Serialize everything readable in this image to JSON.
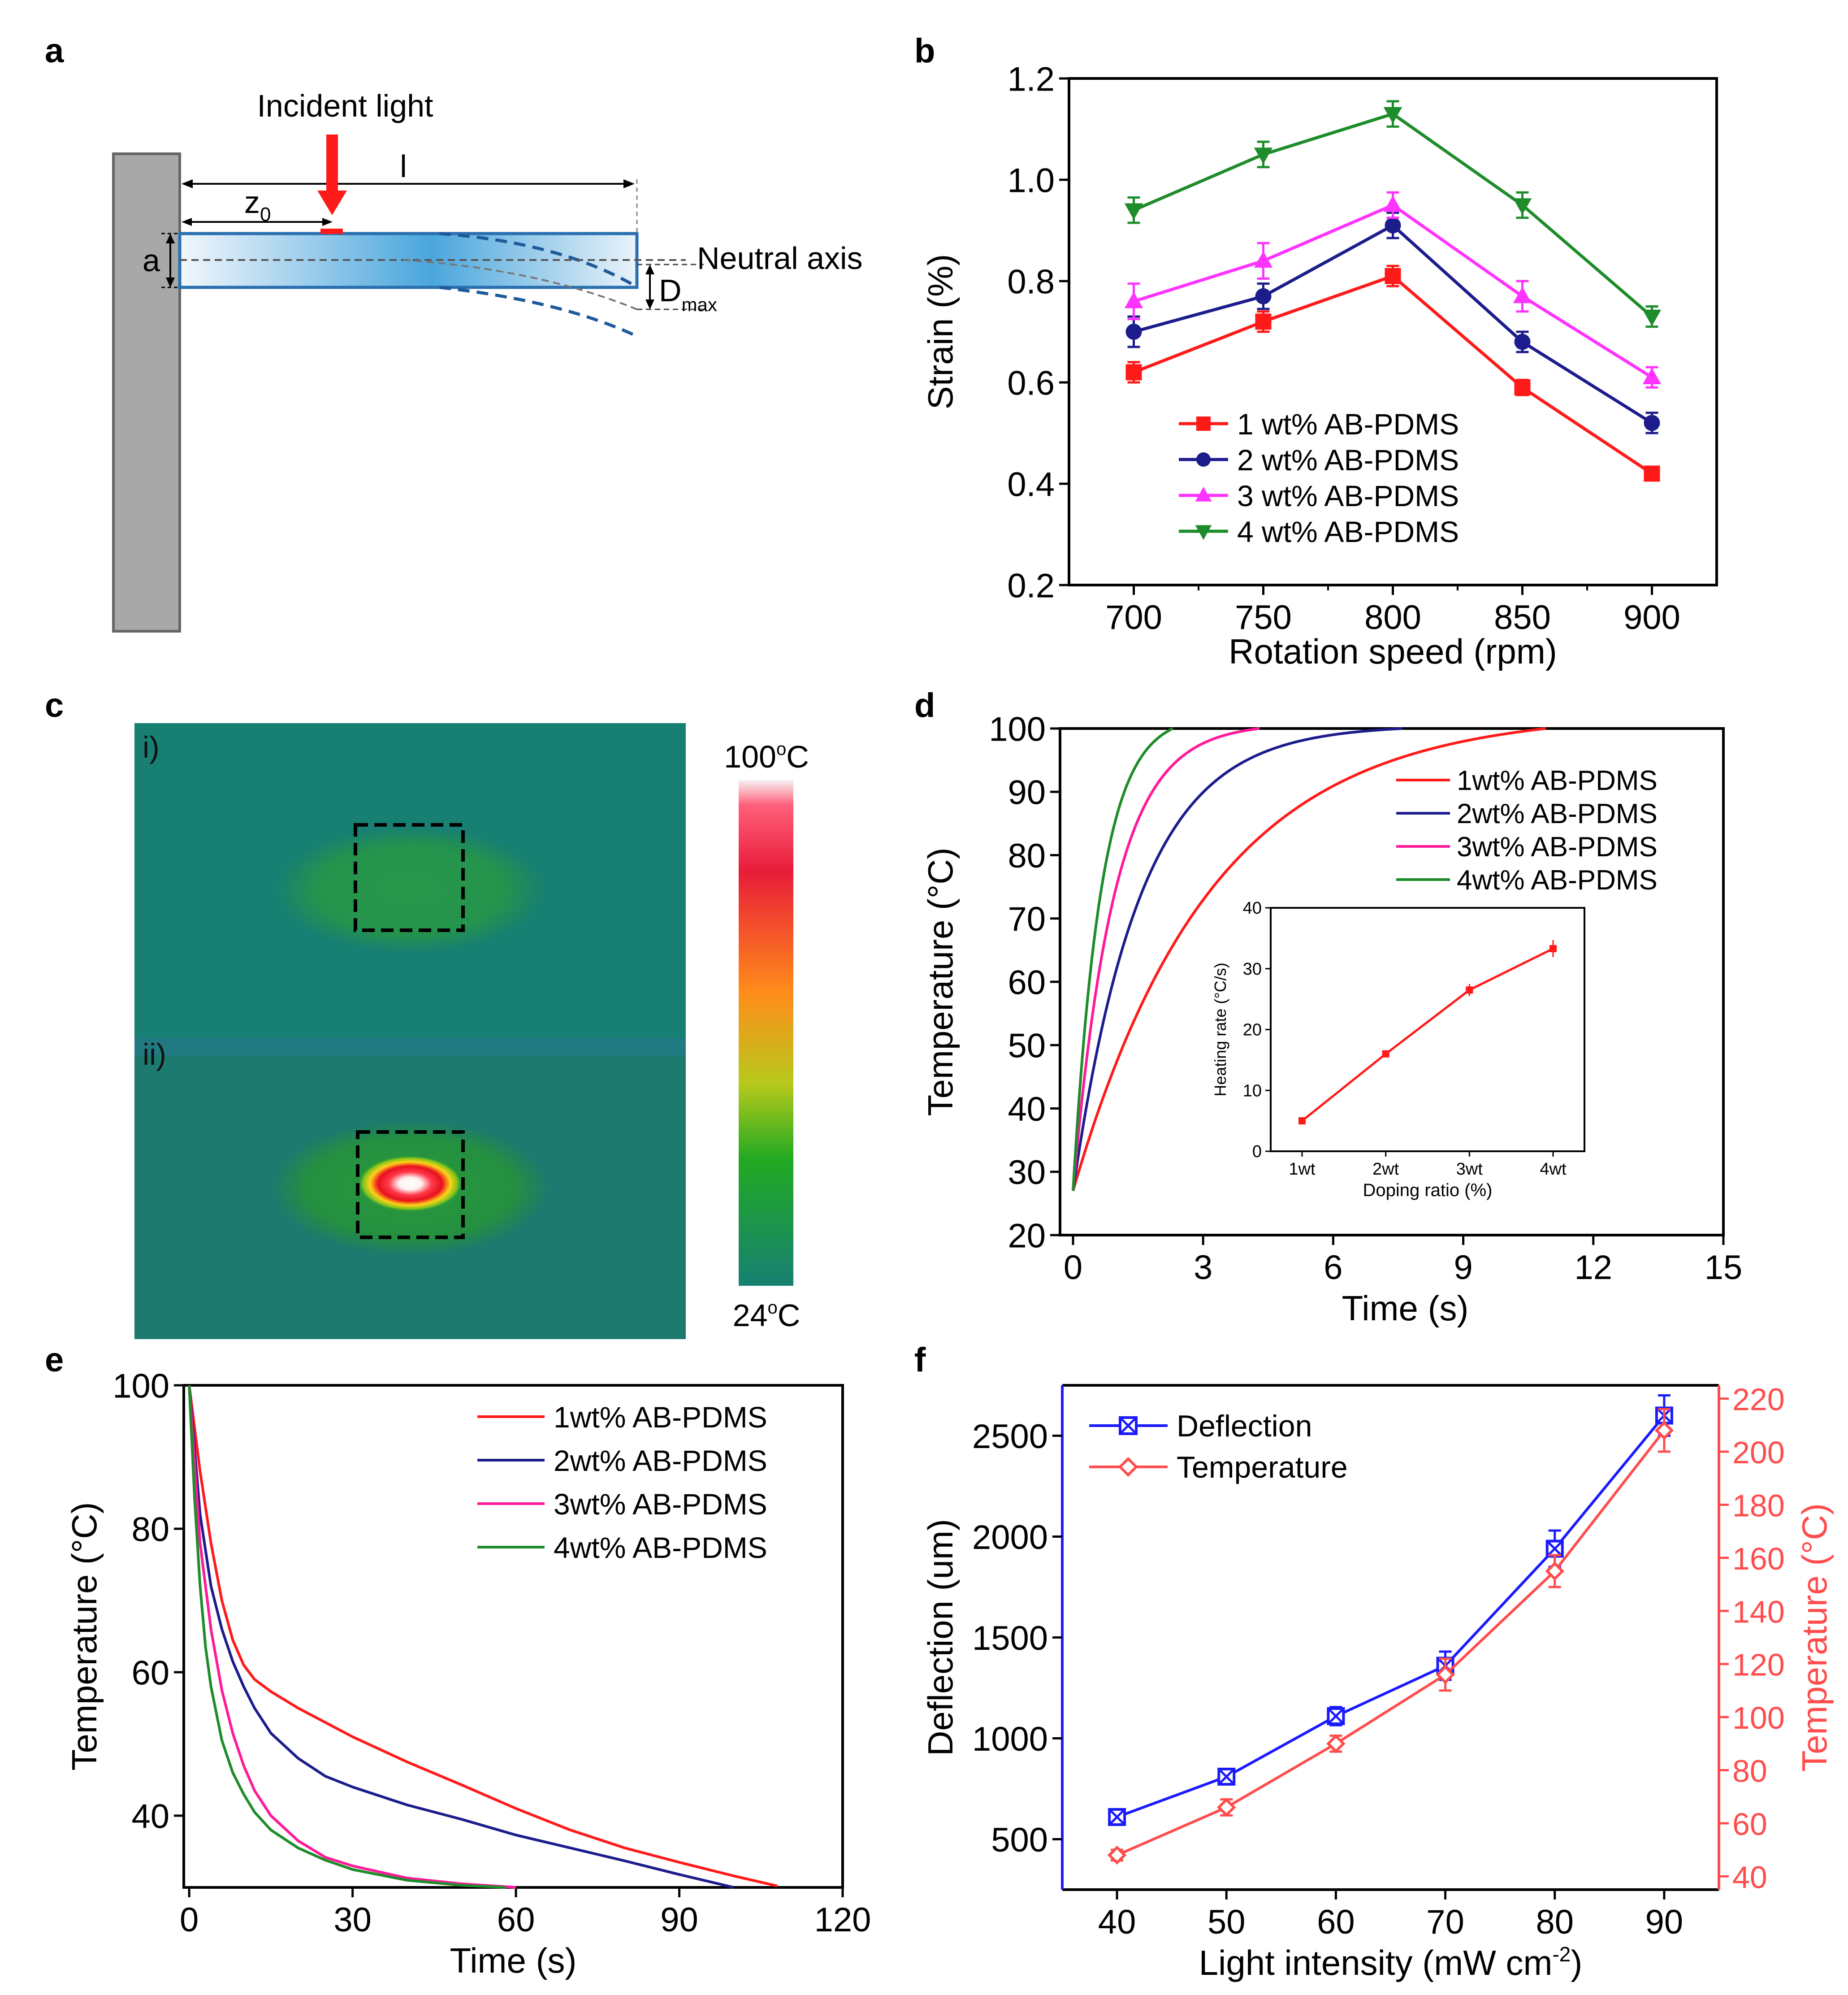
{
  "panel_labels": {
    "a": "a",
    "b": "b",
    "c": "c",
    "d": "d",
    "e": "e",
    "f": "f"
  },
  "colors": {
    "red": "#ff1a1a",
    "navy": "#1c1c8c",
    "magenta": "#ff33cc",
    "green": "#1e8c2a",
    "pink": "#ff3399",
    "blue": "#1a1aff",
    "temp_red": "#ff4d4d",
    "thermal_bg": "#178072",
    "thermal_bg2": "#1d7a6e"
  },
  "panel_a": {
    "incident_light": "Incident light",
    "length_label": "l",
    "z0_label": "z",
    "z0_sub": "0",
    "thickness_label": "a",
    "neutral_axis": "Neutral axis",
    "dmax_label": "D",
    "dmax_sub": "max"
  },
  "panel_c": {
    "sub_i": "i)",
    "sub_ii": "ii)",
    "scale_max": "100",
    "scale_max_sup": "o",
    "scale_max_unit": "C",
    "scale_min": "24",
    "scale_min_sup": "o",
    "scale_min_unit": "C"
  },
  "chart_data": [
    {
      "id": "b",
      "type": "line",
      "xlabel": "Rotation speed (rpm)",
      "ylabel": "Strain (%)",
      "xlim": [
        675,
        925
      ],
      "ylim": [
        0.2,
        1.2
      ],
      "xticks": [
        700,
        750,
        800,
        850,
        900
      ],
      "yticks": [
        0.2,
        0.4,
        0.6,
        0.8,
        1.0,
        1.2
      ],
      "ytick_labels": [
        "0.2",
        "0.4",
        "0.6",
        "0.8",
        "1.0",
        "1.2"
      ],
      "x": [
        700,
        750,
        800,
        850,
        900
      ],
      "legend_position": "bottom-left",
      "series": [
        {
          "name": "1 wt% AB-PDMS",
          "color": "#ff1a1a",
          "marker": "square",
          "values": [
            0.62,
            0.72,
            0.81,
            0.59,
            0.42
          ],
          "err": [
            0.02,
            0.02,
            0.02,
            0.015,
            0.01
          ]
        },
        {
          "name": "2 wt% AB-PDMS",
          "color": "#1c1c8c",
          "marker": "circle",
          "values": [
            0.7,
            0.77,
            0.91,
            0.68,
            0.52
          ],
          "err": [
            0.03,
            0.025,
            0.025,
            0.02,
            0.02
          ]
        },
        {
          "name": "3 wt% AB-PDMS",
          "color": "#ff33ff",
          "marker": "triangle-up",
          "values": [
            0.76,
            0.84,
            0.95,
            0.77,
            0.61
          ],
          "err": [
            0.035,
            0.035,
            0.025,
            0.03,
            0.02
          ]
        },
        {
          "name": "4 wt% AB-PDMS",
          "color": "#1e8c2a",
          "marker": "triangle-down",
          "values": [
            0.94,
            1.05,
            1.13,
            0.95,
            0.73
          ],
          "err": [
            0.025,
            0.025,
            0.025,
            0.025,
            0.02
          ]
        }
      ]
    },
    {
      "id": "d",
      "type": "line",
      "xlabel": "Time (s)",
      "ylabel": "Temperature (°C)",
      "xlim": [
        -0.3,
        15
      ],
      "ylim": [
        20,
        100
      ],
      "xticks": [
        0,
        3,
        6,
        9,
        12,
        15
      ],
      "yticks": [
        20,
        30,
        40,
        50,
        60,
        70,
        80,
        90,
        100
      ],
      "legend_position": "top-right",
      "series": [
        {
          "name": "1wt% AB-PDMS",
          "color": "#ff1a1a",
          "T0": 27,
          "Tmax": 100,
          "tau": 3.2,
          "t_end": 10.9
        },
        {
          "name": "2wt% AB-PDMS",
          "color": "#1c1c8c",
          "T0": 27,
          "Tmax": 100,
          "tau": 1.55,
          "t_end": 7.6
        },
        {
          "name": "3wt% AB-PDMS",
          "color": "#ff1a99",
          "T0": 27,
          "Tmax": 100,
          "tau": 0.95,
          "t_end": 4.3
        },
        {
          "name": "4wt% AB-PDMS",
          "color": "#1e8c2a",
          "T0": 27,
          "Tmax": 100,
          "tau": 0.65,
          "t_end": 2.3
        }
      ],
      "inset": {
        "type": "line",
        "xlabel": "Doping ratio (%)",
        "ylabel": "Heating rate (°C/s)",
        "categories": [
          "1wt",
          "2wt",
          "3wt",
          "4wt"
        ],
        "values": [
          5,
          16,
          26.5,
          33.3
        ],
        "err": [
          0.6,
          0.6,
          1.0,
          1.4
        ],
        "ylim": [
          0,
          40
        ],
        "yticks": [
          0,
          10,
          20,
          30,
          40
        ],
        "color": "#ff1a1a"
      }
    },
    {
      "id": "e",
      "type": "line",
      "xlabel": "Time (s)",
      "ylabel": "Temperature (°C)",
      "xlim": [
        -1,
        120
      ],
      "ylim": [
        30,
        100
      ],
      "xticks": [
        0,
        30,
        60,
        90,
        120
      ],
      "yticks": [
        40,
        60,
        80,
        100
      ],
      "legend_position": "top-right",
      "series": [
        {
          "name": "1wt% AB-PDMS",
          "color": "#ff1a1a",
          "t_end": 108,
          "points": [
            [
              0,
              100
            ],
            [
              2,
              88
            ],
            [
              4,
              78
            ],
            [
              6,
              70
            ],
            [
              8,
              64.5
            ],
            [
              10,
              61
            ],
            [
              12,
              59
            ],
            [
              15,
              57.3
            ],
            [
              20,
              55
            ],
            [
              30,
              51
            ],
            [
              40,
              47.5
            ],
            [
              50,
              44.3
            ],
            [
              60,
              41
            ],
            [
              70,
              38
            ],
            [
              80,
              35.5
            ],
            [
              90,
              33.5
            ],
            [
              100,
              31.6
            ],
            [
              108,
              30.2
            ]
          ]
        },
        {
          "name": "2wt% AB-PDMS",
          "color": "#1c1c8c",
          "t_end": 100,
          "points": [
            [
              0,
              100
            ],
            [
              2,
              82
            ],
            [
              4,
              72
            ],
            [
              6,
              66
            ],
            [
              8,
              61.5
            ],
            [
              10,
              58
            ],
            [
              12,
              55
            ],
            [
              15,
              51.5
            ],
            [
              20,
              48
            ],
            [
              25,
              45.5
            ],
            [
              30,
              44
            ],
            [
              40,
              41.5
            ],
            [
              50,
              39.5
            ],
            [
              60,
              37.3
            ],
            [
              70,
              35.5
            ],
            [
              80,
              33.7
            ],
            [
              90,
              31.8
            ],
            [
              100,
              30
            ]
          ]
        },
        {
          "name": "3wt% AB-PDMS",
          "color": "#ff1a99",
          "t_end": 60,
          "points": [
            [
              0,
              100
            ],
            [
              2,
              78
            ],
            [
              4,
              66
            ],
            [
              6,
              57.5
            ],
            [
              8,
              51.5
            ],
            [
              10,
              47
            ],
            [
              12,
              43.5
            ],
            [
              15,
              40
            ],
            [
              20,
              36.5
            ],
            [
              25,
              34.2
            ],
            [
              30,
              33
            ],
            [
              40,
              31.3
            ],
            [
              50,
              30.5
            ],
            [
              60,
              30
            ]
          ]
        },
        {
          "name": "4wt% AB-PDMS",
          "color": "#1e8c2a",
          "t_end": 58,
          "points": [
            [
              0,
              100
            ],
            [
              1,
              84
            ],
            [
              2,
              72
            ],
            [
              3,
              63.5
            ],
            [
              4,
              58
            ],
            [
              6,
              50.5
            ],
            [
              8,
              46
            ],
            [
              10,
              43
            ],
            [
              12,
              40.5
            ],
            [
              15,
              38
            ],
            [
              20,
              35.5
            ],
            [
              25,
              33.8
            ],
            [
              30,
              32.5
            ],
            [
              40,
              31
            ],
            [
              50,
              30.3
            ],
            [
              58,
              30
            ]
          ]
        }
      ]
    },
    {
      "id": "f",
      "type": "line",
      "xlabel": "Light intensity (mW cm",
      "xlabel_sup": "-2",
      "xlabel_tail": ")",
      "ylabel": "Deflection (um)",
      "y2label": "Temperature (°C)",
      "xlim": [
        35,
        95
      ],
      "ylim": [
        250,
        2750
      ],
      "y2lim": [
        35,
        225
      ],
      "xticks": [
        40,
        50,
        60,
        70,
        80,
        90
      ],
      "yticks": [
        500,
        1000,
        1500,
        2000,
        2500
      ],
      "y2ticks": [
        40,
        60,
        80,
        100,
        120,
        140,
        160,
        180,
        200,
        220
      ],
      "x": [
        40,
        50,
        60,
        70,
        80,
        90
      ],
      "legend_position": "top-left",
      "series": [
        {
          "name": "Deflection",
          "color": "#1a1aff",
          "axis": "left",
          "marker": "square-x",
          "values": [
            610,
            810,
            1110,
            1360,
            1940,
            2600
          ],
          "err": [
            25,
            30,
            45,
            70,
            90,
            100
          ]
        },
        {
          "name": "Temperature",
          "color": "#ff4d4d",
          "axis": "right",
          "marker": "diamond",
          "values": [
            48,
            66,
            90,
            116,
            155,
            208
          ],
          "err": [
            2,
            3,
            3,
            6,
            6,
            8
          ]
        }
      ]
    }
  ]
}
